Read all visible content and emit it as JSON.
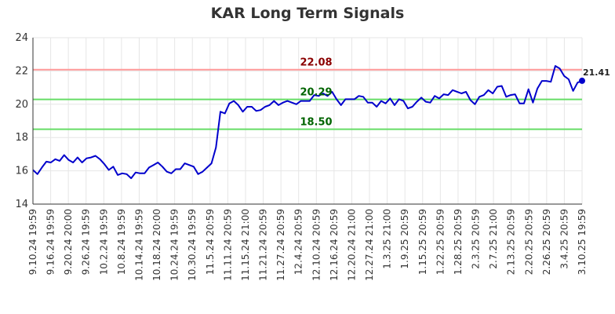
{
  "chart_data": {
    "type": "line",
    "title": "KAR Long Term Signals",
    "xlabel": "",
    "ylabel": "",
    "ylim": [
      14,
      24
    ],
    "y_ticks": [
      14,
      16,
      18,
      20,
      22,
      24
    ],
    "grid": true,
    "x_tick_labels": [
      "9.10.24 19:59",
      "9.16.24 19:59",
      "9.20.24 20:00",
      "9.26.24 19:59",
      "10.2.24 19:59",
      "10.8.24 19:59",
      "10.14.24 19:59",
      "10.18.24 20:00",
      "10.24.24 19:59",
      "10.30.24 19:59",
      "11.5.24 20:59",
      "11.11.24 20:59",
      "11.15.24 21:00",
      "11.21.24 20:59",
      "11.27.24 20:59",
      "12.4.24 20:59",
      "12.10.24 20:59",
      "12.16.24 20:59",
      "12.20.24 21:00",
      "12.27.24 21:00",
      "1.3.25 21:00",
      "1.9.25 20:59",
      "1.15.25 20:59",
      "1.22.25 20:59",
      "1.28.25 20:59",
      "2.3.25 20:59",
      "2.7.25 21:00",
      "2.13.25 20:59",
      "2.20.25 20:59",
      "2.26.25 20:59",
      "3.4.25 20:59",
      "3.10.25 19:59"
    ],
    "series": [
      {
        "color": "#0000cc",
        "values": [
          16.05,
          15.8,
          16.2,
          16.55,
          16.5,
          16.7,
          16.6,
          16.95,
          16.65,
          16.5,
          16.8,
          16.5,
          16.75,
          16.8,
          16.9,
          16.7,
          16.4,
          16.05,
          16.25,
          15.75,
          15.85,
          15.8,
          15.55,
          15.9,
          15.85,
          15.85,
          16.2,
          16.35,
          16.5,
          16.25,
          15.95,
          15.85,
          16.1,
          16.1,
          16.45,
          16.35,
          16.25,
          15.8,
          15.95,
          16.2,
          16.45,
          17.4,
          19.55,
          19.45,
          20.05,
          20.2,
          19.95,
          19.55,
          19.85,
          19.85,
          19.6,
          19.65,
          19.85,
          19.95,
          20.2,
          19.95,
          20.1,
          20.2,
          20.1,
          20.0,
          20.2,
          20.2,
          20.2,
          20.55,
          20.5,
          20.65,
          20.5,
          20.75,
          20.3,
          19.95,
          20.3,
          20.3,
          20.3,
          20.5,
          20.45,
          20.1,
          20.1,
          19.85,
          20.2,
          20.05,
          20.35,
          19.95,
          20.3,
          20.2,
          19.75,
          19.85,
          20.15,
          20.4,
          20.15,
          20.1,
          20.5,
          20.35,
          20.6,
          20.55,
          20.85,
          20.75,
          20.65,
          20.75,
          20.25,
          20.0,
          20.45,
          20.55,
          20.85,
          20.65,
          21.05,
          21.1,
          20.45,
          20.55,
          20.6,
          20.05,
          20.05,
          20.9,
          20.1,
          20.95,
          21.4,
          21.4,
          21.35,
          22.3,
          22.15,
          21.7,
          21.5,
          20.8,
          21.3,
          21.41
        ]
      }
    ],
    "reference_lines": [
      {
        "value": 22.08,
        "label": "22.08",
        "color": "#ff9999",
        "label_color": "#8b0000"
      },
      {
        "value": 20.29,
        "label": "20.29",
        "color": "#66dd66",
        "label_color": "#006400"
      },
      {
        "value": 18.5,
        "label": "18.50",
        "color": "#66dd66",
        "label_color": "#006400"
      }
    ],
    "last_value_label": "21.41",
    "colors": {
      "line": "#0000cc",
      "grid": "#e6e6e6",
      "axis": "#333333"
    }
  }
}
